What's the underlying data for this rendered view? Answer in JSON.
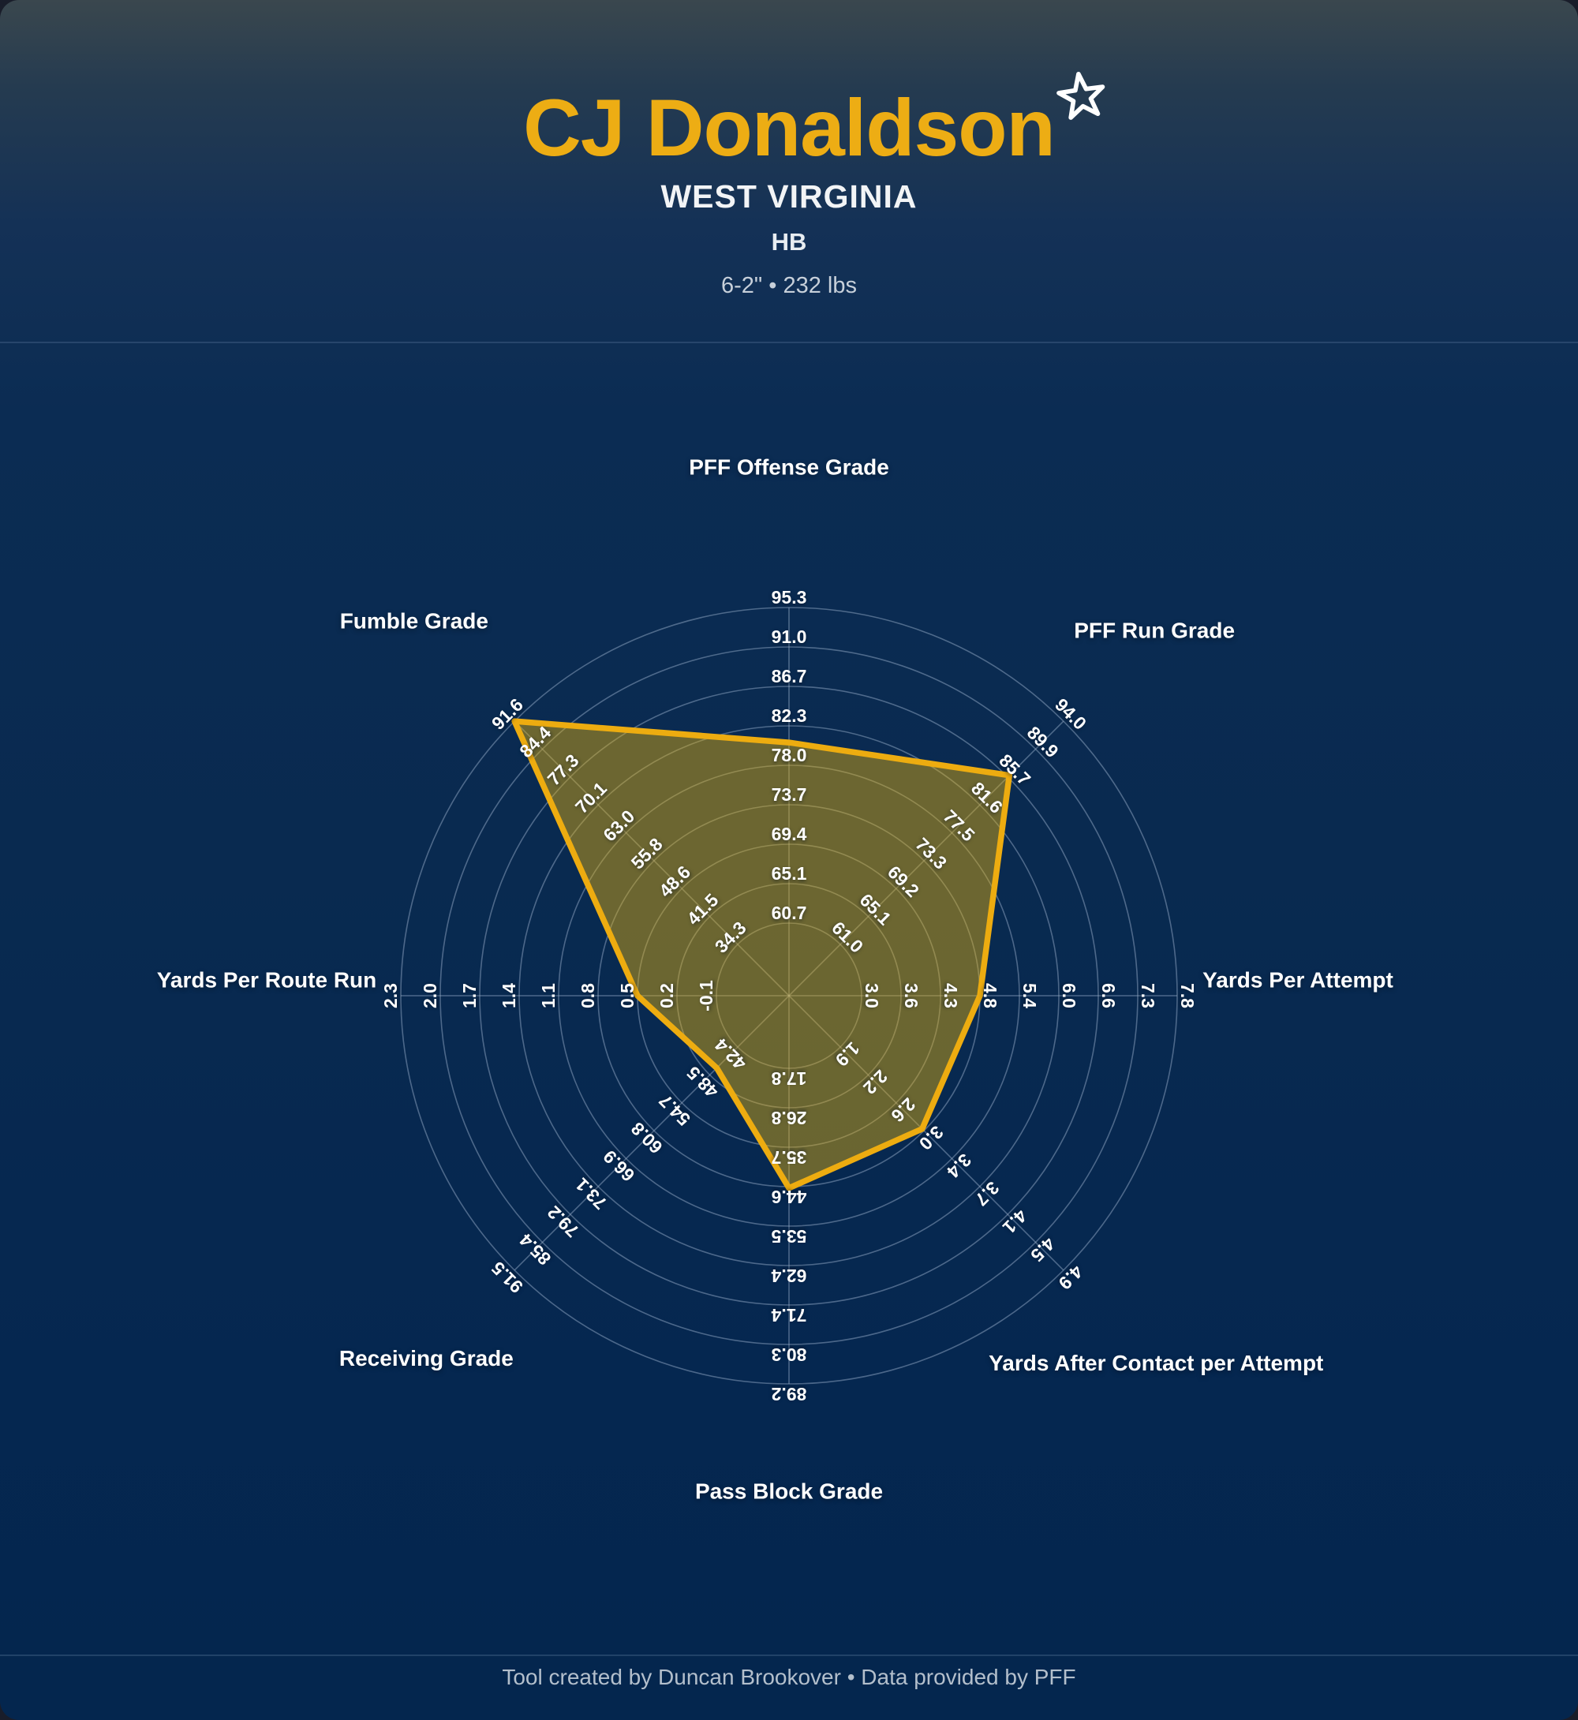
{
  "header": {
    "player_name": "CJ Donaldson",
    "team": "WEST VIRGINIA",
    "position": "HB",
    "measurables": "6-2\" • 232 lbs",
    "star_icon": "star-outline"
  },
  "footer": {
    "credit": "Tool created by Duncan Brookover • Data provided by PFF"
  },
  "colors": {
    "title_gold": "#edad14",
    "polygon_fill": "rgba(235,179,10,0.44)",
    "polygon_stroke": "#edac10",
    "grid": "rgba(173,193,220,0.42)",
    "tick_text": "#ffffff",
    "background_navy": "#092a50"
  },
  "chart_data": {
    "type": "radar",
    "rings": 9,
    "legend_position": "none",
    "grid": true,
    "axes": [
      {
        "label": "PFF Offense Grade",
        "angle_deg": 0,
        "ticks": [
          "60.7",
          "65.1",
          "69.4",
          "73.7",
          "78.0",
          "82.3",
          "86.7",
          "91.0",
          "95.3"
        ],
        "value": 80.5
      },
      {
        "label": "PFF Run Grade",
        "angle_deg": 45,
        "ticks": [
          "61.0",
          "65.1",
          "69.2",
          "73.3",
          "77.5",
          "81.6",
          "85.7",
          "89.9",
          "94.0"
        ],
        "value": 86.0
      },
      {
        "label": "Yards Per Attempt",
        "angle_deg": 90,
        "ticks": [
          "3.0",
          "3.6",
          "4.3",
          "4.8",
          "5.4",
          "6.0",
          "6.6",
          "7.3",
          "7.8"
        ],
        "value": 4.8
      },
      {
        "label": "Yards After Contact per Attempt",
        "angle_deg": 135,
        "ticks": [
          "1.9",
          "2.2",
          "2.6",
          "3.0",
          "3.4",
          "3.7",
          "4.1",
          "4.5",
          "4.9"
        ],
        "value": 3.0
      },
      {
        "label": "Pass Block Grade",
        "angle_deg": 180,
        "ticks": [
          "17.8",
          "26.8",
          "35.7",
          "44.6",
          "53.5",
          "62.4",
          "71.4",
          "80.3",
          "89.2"
        ],
        "value": 44.9
      },
      {
        "label": "Receiving Grade",
        "angle_deg": 225,
        "ticks": [
          "42.4",
          "48.5",
          "54.7",
          "60.8",
          "66.9",
          "73.1",
          "79.2",
          "85.4",
          "91.5"
        ],
        "value": 47.0
      },
      {
        "label": "Yards Per Route Run",
        "angle_deg": 270,
        "ticks": [
          "-0.1",
          "0.2",
          "0.5",
          "0.8",
          "1.1",
          "1.4",
          "1.7",
          "2.0",
          "2.3"
        ],
        "value": 0.5
      },
      {
        "label": "Fumble Grade",
        "angle_deg": 315,
        "ticks": [
          "34.3",
          "41.5",
          "48.6",
          "55.8",
          "63.0",
          "70.1",
          "77.3",
          "84.4",
          "91.6"
        ],
        "value": 91.6
      }
    ]
  }
}
